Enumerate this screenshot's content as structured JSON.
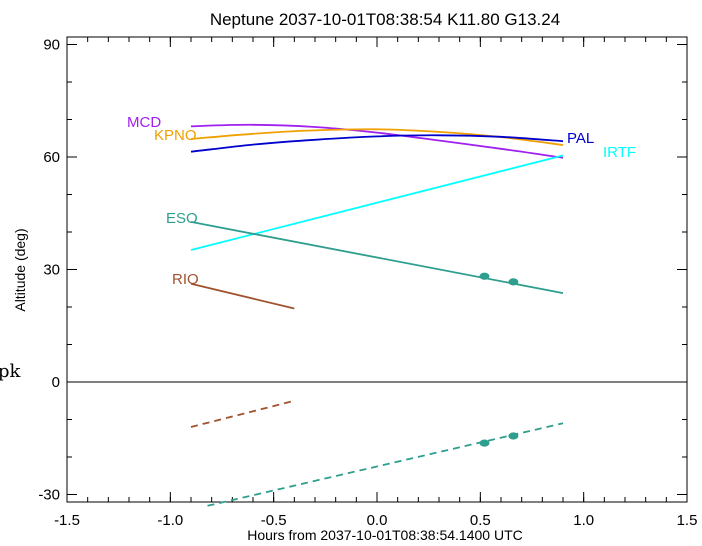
{
  "chart_data": {
    "type": "line",
    "title": "Neptune 2037-10-01T08:38:54  K11.80  G13.24",
    "xlabel": "Hours from 2037-10-01T08:38:54.1400 UTC",
    "ylabel": "Altitude (deg)",
    "xlim": [
      -1.5,
      1.5
    ],
    "ylim": [
      -32,
      92
    ],
    "xticks": [
      -1.5,
      -1.0,
      -0.5,
      0.0,
      0.5,
      1.0,
      1.5
    ],
    "xtick_labels": [
      "-1.5",
      "-1.0",
      "-0.5",
      "0.0",
      "0.5",
      "1.0",
      "1.5"
    ],
    "yticks": [
      -30,
      0,
      30,
      60,
      90
    ],
    "ytick_labels": [
      "-30",
      "0",
      "30",
      "60",
      "90"
    ],
    "zero_line": true,
    "grid": false,
    "edge_text": "pk",
    "series": [
      {
        "name": "MCD",
        "color": "#a020f0",
        "style": "solid",
        "x": [
          -0.9,
          -0.6,
          -0.3,
          0.0,
          0.3,
          0.6,
          0.9
        ],
        "y": [
          68.2,
          68.6,
          68.0,
          66.5,
          64.4,
          62.2,
          59.8
        ]
      },
      {
        "name": "KPNO",
        "color": "#f0a000",
        "style": "solid",
        "x": [
          -0.9,
          -0.6,
          -0.3,
          0.0,
          0.3,
          0.6,
          0.9
        ],
        "y": [
          64.8,
          66.2,
          67.1,
          67.4,
          66.7,
          65.3,
          63.2
        ]
      },
      {
        "name": "PAL",
        "color": "#0000cd",
        "style": "solid",
        "x": [
          -0.9,
          -0.6,
          -0.3,
          0.0,
          0.3,
          0.6,
          0.9
        ],
        "y": [
          61.4,
          63.3,
          64.6,
          65.5,
          65.8,
          65.4,
          64.2
        ]
      },
      {
        "name": "IRTF",
        "color": "#00ffff",
        "style": "solid",
        "x": [
          -0.9,
          0.9
        ],
        "y": [
          35.2,
          60.4
        ]
      },
      {
        "name": "ESO",
        "color": "#2e9e8e",
        "style": "solid",
        "x": [
          -0.9,
          0.9
        ],
        "y": [
          42.7,
          23.7
        ],
        "markers": {
          "x": [
            0.52,
            0.66
          ],
          "y": [
            28.2,
            26.7
          ]
        }
      },
      {
        "name": "RIO",
        "color": "#a0522d",
        "style": "solid",
        "x": [
          -0.9,
          -0.4
        ],
        "y": [
          26.2,
          19.6
        ]
      },
      {
        "name": "",
        "color": "#a0522d",
        "style": "dashed",
        "x": [
          -0.9,
          -0.4
        ],
        "y": [
          -12.0,
          -5.0
        ]
      },
      {
        "name": "",
        "color": "#2e9e8e",
        "style": "dashed",
        "x": [
          -0.82,
          0.9
        ],
        "y": [
          -33.0,
          -11.0
        ],
        "markers": {
          "x": [
            0.52,
            0.66
          ],
          "y": [
            -16.3,
            -14.4
          ]
        }
      }
    ]
  }
}
